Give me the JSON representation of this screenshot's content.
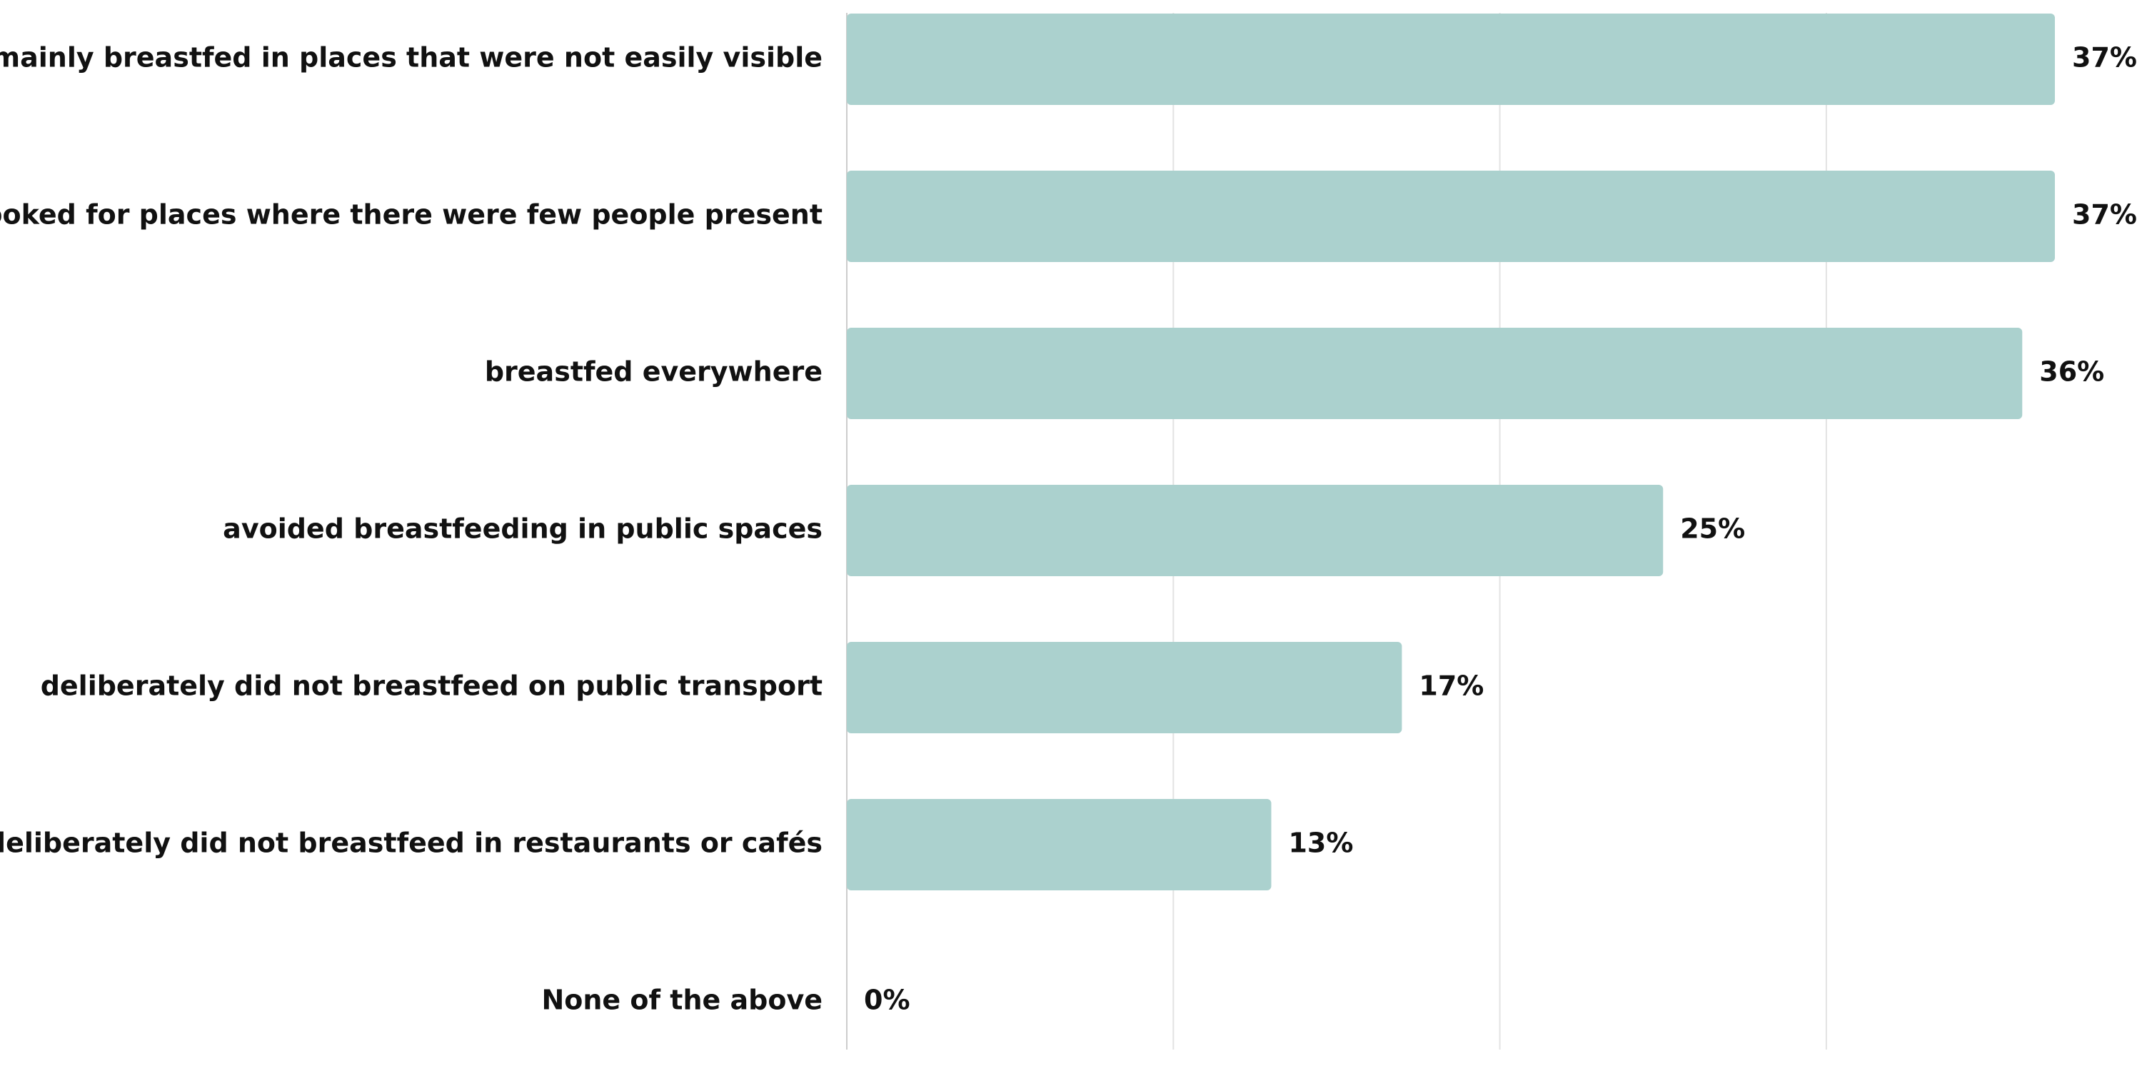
{
  "chart_data": {
    "type": "bar",
    "orientation": "horizontal",
    "categories": [
      "mainly breastfed in places that were not easily visible",
      "looked for places where there were few people present",
      "breastfed everywhere",
      "avoided breastfeeding in public spaces",
      "deliberately did not breastfeed on public transport",
      "deliberately did not breastfeed in restaurants or cafés",
      "None of the above"
    ],
    "values": [
      37,
      37,
      36,
      25,
      17,
      13,
      0
    ],
    "value_labels": [
      "37%",
      "37%",
      "36%",
      "25%",
      "17%",
      "13%",
      "0%"
    ],
    "value_unit": "%",
    "xlim": [
      0,
      40
    ],
    "grid": true,
    "legend": "none",
    "bar_color": "#abd1ce",
    "title": "",
    "xlabel": "",
    "ylabel": ""
  }
}
